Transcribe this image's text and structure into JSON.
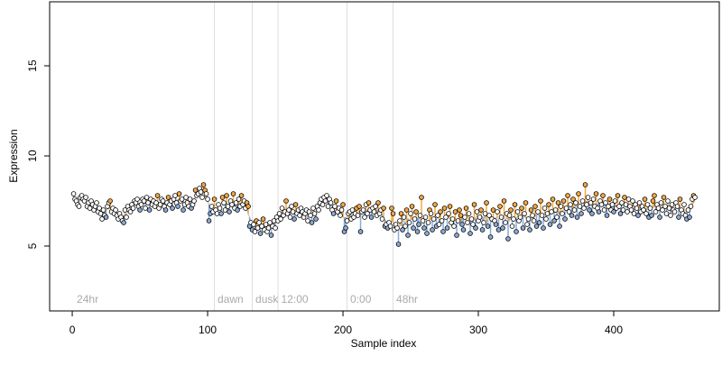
{
  "chart_data": {
    "type": "scatter",
    "xlabel": "Sample index",
    "ylabel": "Expression",
    "xlim": [
      -16.7,
      478
    ],
    "ylim": [
      1.4,
      18.55
    ],
    "xticks": [
      0,
      100,
      200,
      300,
      400
    ],
    "yticks": [
      5,
      10,
      15
    ],
    "vlines": [
      105,
      133,
      152,
      203,
      237
    ],
    "vline_color": "#dddddd",
    "annotations": [
      {
        "label": "24hr",
        "x": 2
      },
      {
        "label": "dawn",
        "x": 106
      },
      {
        "label": "dusk",
        "x": 134
      },
      {
        "label": "12:00",
        "x": 153
      },
      {
        "label": "0:00",
        "x": 204
      },
      {
        "label": "48hr",
        "x": 238
      }
    ],
    "annotation_y": 2,
    "high_color": "#f4a742",
    "low_color": "#8aaad6",
    "values": [
      7.9,
      7.6,
      7.5,
      7.3,
      7.2,
      7.7,
      7.8,
      7.6,
      7.5,
      7.7,
      7.2,
      7.4,
      7.1,
      7.5,
      7.3,
      7.0,
      7.2,
      7.4,
      6.9,
      7.1,
      6.8,
      6.5,
      7.0,
      6.7,
      6.6,
      7.2,
      7.4,
      7.5,
      6.9,
      7.1,
      6.8,
      7.0,
      6.7,
      6.5,
      6.8,
      6.6,
      6.4,
      6.3,
      7.0,
      6.6,
      7.2,
      7.0,
      6.9,
      7.3,
      7.1,
      7.5,
      7.4,
      7.6,
      7.2,
      7.0,
      7.3,
      7.6,
      7.5,
      7.1,
      7.7,
      7.4,
      7.0,
      7.6,
      7.3,
      7.5,
      7.2,
      7.4,
      7.8,
      7.1,
      7.3,
      7.6,
      7.5,
      7.2,
      7.0,
      7.4,
      7.7,
      7.3,
      7.5,
      7.1,
      7.6,
      7.8,
      7.4,
      7.2,
      7.9,
      7.5,
      7.6,
      7.0,
      7.3,
      7.7,
      7.4,
      7.2,
      7.6,
      7.1,
      7.3,
      7.5,
      8.1,
      7.8,
      7.9,
      8.2,
      8.0,
      7.7,
      8.4,
      8.1,
      7.9,
      7.6,
      6.4,
      6.8,
      7.2,
      6.9,
      7.6,
      7.0,
      6.8,
      7.3,
      7.1,
      6.8,
      7.7,
      7.4,
      7.0,
      7.8,
      7.2,
      6.9,
      7.5,
      7.3,
      7.9,
      7.1,
      7.4,
      7.0,
      7.6,
      7.2,
      7.8,
      7.3,
      7.5,
      7.1,
      7.4,
      7.2,
      6.1,
      6.3,
      5.9,
      6.2,
      5.8,
      6.4,
      6.0,
      6.3,
      5.7,
      6.1,
      6.5,
      5.9,
      6.2,
      5.8,
      6.0,
      6.3,
      5.6,
      6.1,
      6.4,
      6.0,
      6.6,
      6.4,
      6.8,
      6.5,
      7.1,
      6.7,
      6.9,
      7.5,
      6.8,
      7.0,
      6.6,
      7.2,
      6.9,
      6.5,
      7.3,
      6.8,
      7.0,
      6.7,
      7.1,
      6.9,
      6.6,
      6.8,
      7.0,
      6.4,
      6.9,
      6.7,
      6.3,
      7.1,
      6.8,
      6.5,
      7.2,
      7.0,
      7.4,
      7.6,
      7.3,
      7.7,
      7.5,
      7.8,
      7.2,
      7.6,
      7.4,
      7.0,
      6.8,
      7.2,
      7.5,
      6.9,
      7.1,
      6.7,
      7.0,
      7.3,
      5.8,
      6.0,
      6.4,
      6.8,
      6.9,
      6.5,
      7.0,
      6.6,
      6.8,
      7.1,
      6.7,
      7.2,
      5.8,
      6.9,
      7.0,
      6.6,
      7.3,
      6.8,
      7.4,
      7.0,
      6.6,
      7.1,
      6.9,
      7.2,
      6.7,
      7.4,
      6.8,
      7.0,
      6.5,
      7.1,
      6.1,
      6.2,
      6.0,
      6.3,
      6.1,
      7.1,
      6.8,
      5.9,
      6.2,
      6.0,
      5.1,
      6.4,
      6.8,
      5.9,
      6.6,
      6.1,
      7.0,
      5.6,
      6.3,
      6.8,
      7.2,
      6.0,
      6.5,
      6.9,
      5.8,
      6.2,
      6.7,
      7.7,
      6.4,
      6.0,
      6.6,
      5.7,
      6.3,
      7.0,
      6.8,
      5.9,
      6.5,
      7.3,
      6.1,
      6.7,
      6.2,
      6.9,
      6.4,
      5.8,
      7.1,
      6.6,
      6.0,
      6.8,
      7.2,
      6.3,
      6.5,
      6.1,
      6.9,
      5.6,
      6.4,
      7.0,
      6.7,
      6.2,
      5.9,
      6.6,
      7.1,
      6.3,
      6.8,
      5.7,
      6.5,
      6.2,
      7.3,
      6.0,
      6.9,
      6.4,
      6.6,
      7.0,
      5.9,
      6.3,
      6.8,
      7.4,
      6.1,
      6.7,
      5.5,
      6.5,
      7.0,
      6.4,
      6.2,
      6.9,
      5.9,
      7.2,
      6.6,
      6.0,
      7.5,
      6.3,
      6.8,
      5.4,
      6.7,
      7.0,
      6.1,
      6.5,
      7.3,
      5.8,
      6.9,
      6.4,
      6.6,
      7.1,
      6.0,
      6.8,
      7.4,
      6.2,
      6.5,
      5.9,
      7.0,
      6.7,
      6.4,
      7.2,
      6.1,
      6.9,
      6.3,
      7.5,
      6.7,
      6.0,
      7.1,
      6.5,
      6.8,
      7.3,
      6.2,
      6.9,
      7.6,
      6.4,
      7.0,
      6.6,
      7.4,
      6.1,
      7.2,
      6.8,
      7.5,
      6.5,
      7.1,
      7.8,
      6.9,
      7.3,
      6.7,
      7.6,
      7.0,
      7.4,
      6.6,
      7.9,
      7.2,
      6.8,
      7.5,
      7.1,
      8.4,
      7.3,
      7.7,
      7.0,
      7.4,
      6.8,
      7.6,
      7.2,
      7.9,
      7.1,
      6.9,
      7.5,
      7.3,
      7.8,
      7.0,
      7.4,
      6.7,
      7.2,
      7.6,
      7.0,
      7.3,
      6.9,
      7.5,
      7.1,
      7.8,
      7.2,
      6.8,
      7.4,
      7.0,
      7.7,
      7.3,
      6.9,
      7.6,
      7.2,
      7.0,
      7.5,
      6.8,
      7.3,
      7.1,
      6.7,
      7.4,
      6.9,
      7.2,
      7.0,
      7.6,
      6.8,
      7.3,
      6.6,
      7.1,
      6.7,
      7.5,
      7.8,
      6.9,
      7.3,
      7.1,
      6.6,
      7.4,
      7.0,
      7.7,
      7.2,
      6.8,
      7.5,
      7.1,
      6.7,
      7.3,
      7.0,
      6.9,
      7.4,
      7.2,
      6.6,
      7.6,
      7.0,
      6.8,
      7.3,
      6.7,
      6.5,
      7.0,
      6.6,
      7.2,
      7.6,
      7.8,
      7.7
    ]
  }
}
